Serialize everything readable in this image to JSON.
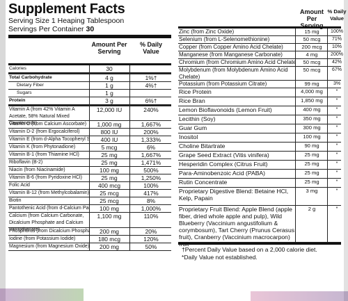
{
  "left": {
    "title": "Supplement Facts",
    "serving_size": "Serving Size 1 Heaping Tablespoon",
    "servings_per_container_label": "Servings Per Container",
    "servings_per_container": "30",
    "header_amount": "Amount Per Serving",
    "header_dv": "% Daily Value",
    "rows": [
      {
        "name": "Calories",
        "amount": "30",
        "dv": ""
      },
      {
        "name": "Total Carbohydrate",
        "amount": "4 g",
        "dv": "1%†"
      },
      {
        "name": "Dietary Fiber",
        "amount": "1 g",
        "dv": "4%†"
      },
      {
        "name": "Sugars",
        "amount": "1 g",
        "dv": ""
      },
      {
        "name": "Protein",
        "amount": "3 g",
        "dv": "6%†"
      },
      {
        "name": "Vitamin A (from 42% Vitamin A Acetate, 58% Natural Mixed Carotenoids)",
        "amount": "12,000 IU",
        "dv": "240%"
      },
      {
        "name": "Vitamin C (from Calcium Ascorbate)",
        "amount": "1,000 mg",
        "dv": "1,667%"
      },
      {
        "name": "Vitamin D-2 (from Ergocalciferol)",
        "amount": "800 IU",
        "dv": "200%"
      },
      {
        "name": "Vitamin E (from d-Alpha Tocopheryl Succinate)",
        "amount": "400 IU",
        "dv": "1,333%"
      },
      {
        "name": "Vitamin K (from Phytonadione)",
        "amount": "5 mcg",
        "dv": "6%"
      },
      {
        "name": "Vitamin B-1 (from Thiamine HCl)",
        "amount": "25 mg",
        "dv": "1,667%"
      },
      {
        "name": "Riboflavin (B-2)",
        "amount": "25 mg",
        "dv": "1,471%"
      },
      {
        "name": "Niacin (from Niacinamide)",
        "amount": "100 mg",
        "dv": "500%"
      },
      {
        "name": "Vitamin B-6 (from Pyridoxine HCl)",
        "amount": "25 mg",
        "dv": "1,250%"
      },
      {
        "name": "Folic Acid",
        "amount": "400 mcg",
        "dv": "100%"
      },
      {
        "name": "Vitamin B-12 (from Methylcobalamin)",
        "amount": "25 mcg",
        "dv": "417%"
      },
      {
        "name": "Biotin",
        "amount": "25 mcg",
        "dv": "8%"
      },
      {
        "name": "Pantothenic Acid (from d-Calcium Pantothenate)",
        "amount": "100 mg",
        "dv": "1,000%"
      },
      {
        "name": "Calcium (from Calcium Carbonate, Dicalcium Phosphate and Calcium Pantothenate)",
        "amount": "1,100 mg",
        "dv": "110%"
      },
      {
        "name": "Phosphorus (from Dicalcium Phosphate)",
        "amount": "200 mg",
        "dv": "20%"
      },
      {
        "name": "Iodine (from Potassium Iodide)",
        "amount": "180 mcg",
        "dv": "120%"
      },
      {
        "name": "Magnesium (from Magnesium Oxide)",
        "amount": "200 mg",
        "dv": "50%"
      }
    ]
  },
  "right": {
    "header_amount": "Amount Per Serving",
    "header_dv": "% Daily Value",
    "rows": [
      {
        "name": "Zinc (from Zinc Oxide)",
        "amount": "15 mg",
        "dv": "100%"
      },
      {
        "name": "Selenium (from L-Selenomethionine)",
        "amount": "50 mcg",
        "dv": "71%"
      },
      {
        "name": "Copper (from Copper Amino Acid Chelate)",
        "amount": "200 mcg",
        "dv": "10%"
      },
      {
        "name": "Manganese (from Manganese Carbonate)",
        "amount": "4 mg",
        "dv": "200%"
      },
      {
        "name": "Chromium (from Chromium Amino Acid Chelate)",
        "amount": "50 mcg",
        "dv": "42%"
      },
      {
        "name": "Molybdenum (from Molybdenum Amino Acid Chelate)",
        "amount": "50 mcg",
        "dv": "67%"
      },
      {
        "name": "Potassium (from Potassium Citrate)",
        "amount": "99 mg",
        "dv": "3%"
      },
      {
        "name": "Rice Protein",
        "amount": "4,000 mg",
        "dv": "*"
      },
      {
        "name": "Rice Bran",
        "amount": "1,850 mg",
        "dv": "*"
      },
      {
        "name": "Lemon Bioflavonoids (Lemon Fruit)",
        "amount": "400 mg",
        "dv": "*"
      },
      {
        "name": "Lecithin (Soy)",
        "amount": "350 mg",
        "dv": "*"
      },
      {
        "name": "Guar Gum",
        "amount": "300 mg",
        "dv": "*"
      },
      {
        "name": "Inositol",
        "amount": "100 mg",
        "dv": "*"
      },
      {
        "name": "Choline Bitartrate",
        "amount": "90 mg",
        "dv": "*"
      },
      {
        "name": "Grape Seed Extract (Vitis vinifera)",
        "amount": "25 mg",
        "dv": "*"
      },
      {
        "name": "Hesperidin Complex (Citrus Fruit)",
        "amount": "25 mg",
        "dv": "*"
      },
      {
        "name": "Para-Aminobenzoic Acid (PABA)",
        "amount": "25 mg",
        "dv": "*"
      },
      {
        "name": "Rutin Concentrate",
        "amount": "25 mg",
        "dv": "*"
      },
      {
        "name": "Proprietary Digestive Blend: Betaine HCl, Kelp, Papain",
        "amount": "3 mg",
        "dv": "*"
      },
      {
        "name": "Proprietary Fruit Blend: Apple Blend (apple fiber, dried whole apple and pulp), Wild Blueberry (Vaccinium angustifolium & corymbosum), Tart Cherry (Prunus Cerasus fruit), Cranberry (Vaccinium macrocarpon) fruit",
        "amount": "2 g",
        "dv": "*"
      }
    ],
    "footnote_1": "†Percent Daily Value based on a 2,000 calorie diet.",
    "footnote_2": "*Daily Value not established."
  }
}
